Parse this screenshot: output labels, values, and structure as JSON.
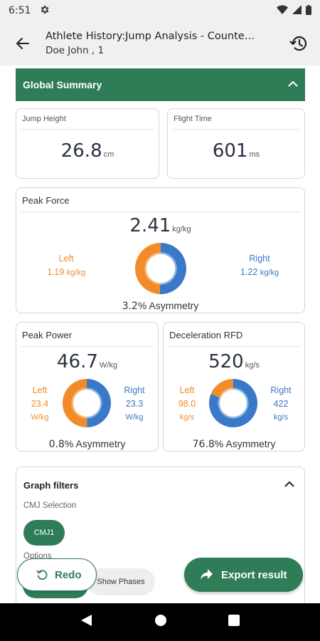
{
  "status_bar": {
    "time": "6:51"
  },
  "app_bar": {
    "title": "Athlete History:Jump Analysis - Counte…",
    "subtitle": "Doe John , 1"
  },
  "summary": {
    "title": "Global Summary"
  },
  "jump_height": {
    "title": "Jump Height",
    "value": "26.8",
    "unit": "cm"
  },
  "flight_time": {
    "title": "Flight Time",
    "value": "601",
    "unit": "ms"
  },
  "peak_force": {
    "title": "Peak Force",
    "value": "2.41",
    "unit": "kg/kg",
    "left_label": "Left",
    "left_value": "1.19",
    "left_unit": "kg/kg",
    "right_label": "Right",
    "right_value": "1.22",
    "right_unit": "kg/kg",
    "asymmetry_value": "3.2",
    "asymmetry_label": "% Asymmetry",
    "left_fraction": 0.494
  },
  "peak_power": {
    "title": "Peak Power",
    "value": "46.7",
    "unit": "W/kg",
    "left_label": "Left",
    "left_value": "23.4",
    "left_unit": "W/kg",
    "right_label": "Right",
    "right_value": "23.3",
    "right_unit": "W/kg",
    "asymmetry_value": "0.8",
    "asymmetry_label": "% Asymmetry",
    "left_fraction": 0.501
  },
  "decel_rfd": {
    "title": "Deceleration RFD",
    "value": "520",
    "unit": "kg/s",
    "left_label": "Left",
    "left_value": "98.0",
    "left_unit": "kg/s",
    "right_label": "Right",
    "right_value": "422",
    "right_unit": "kg/s",
    "asymmetry_value": "76.8",
    "asymmetry_label": "% Asymmetry",
    "left_fraction": 0.188
  },
  "graph_filters": {
    "title": "Graph filters",
    "cmj_selection_label": "CMJ Selection",
    "cmj_chip": "CMJ1",
    "options_label": "Options",
    "show_phases_chip": "Show Phases"
  },
  "actions": {
    "redo_label": "Redo",
    "export_label": "Export result"
  },
  "colors": {
    "primary": "#2e7d57",
    "left": "#f28b2a",
    "right": "#3a78c8",
    "left_light": "#f7b57a",
    "right_light": "#8db4e3"
  },
  "icons": {
    "status": [
      "gear-icon",
      "wifi-icon",
      "signal-icon",
      "battery-icon"
    ],
    "app_bar": [
      "back-arrow-icon",
      "history-icon"
    ],
    "nav": [
      "nav-back-icon",
      "nav-home-icon",
      "nav-recents-icon"
    ]
  }
}
